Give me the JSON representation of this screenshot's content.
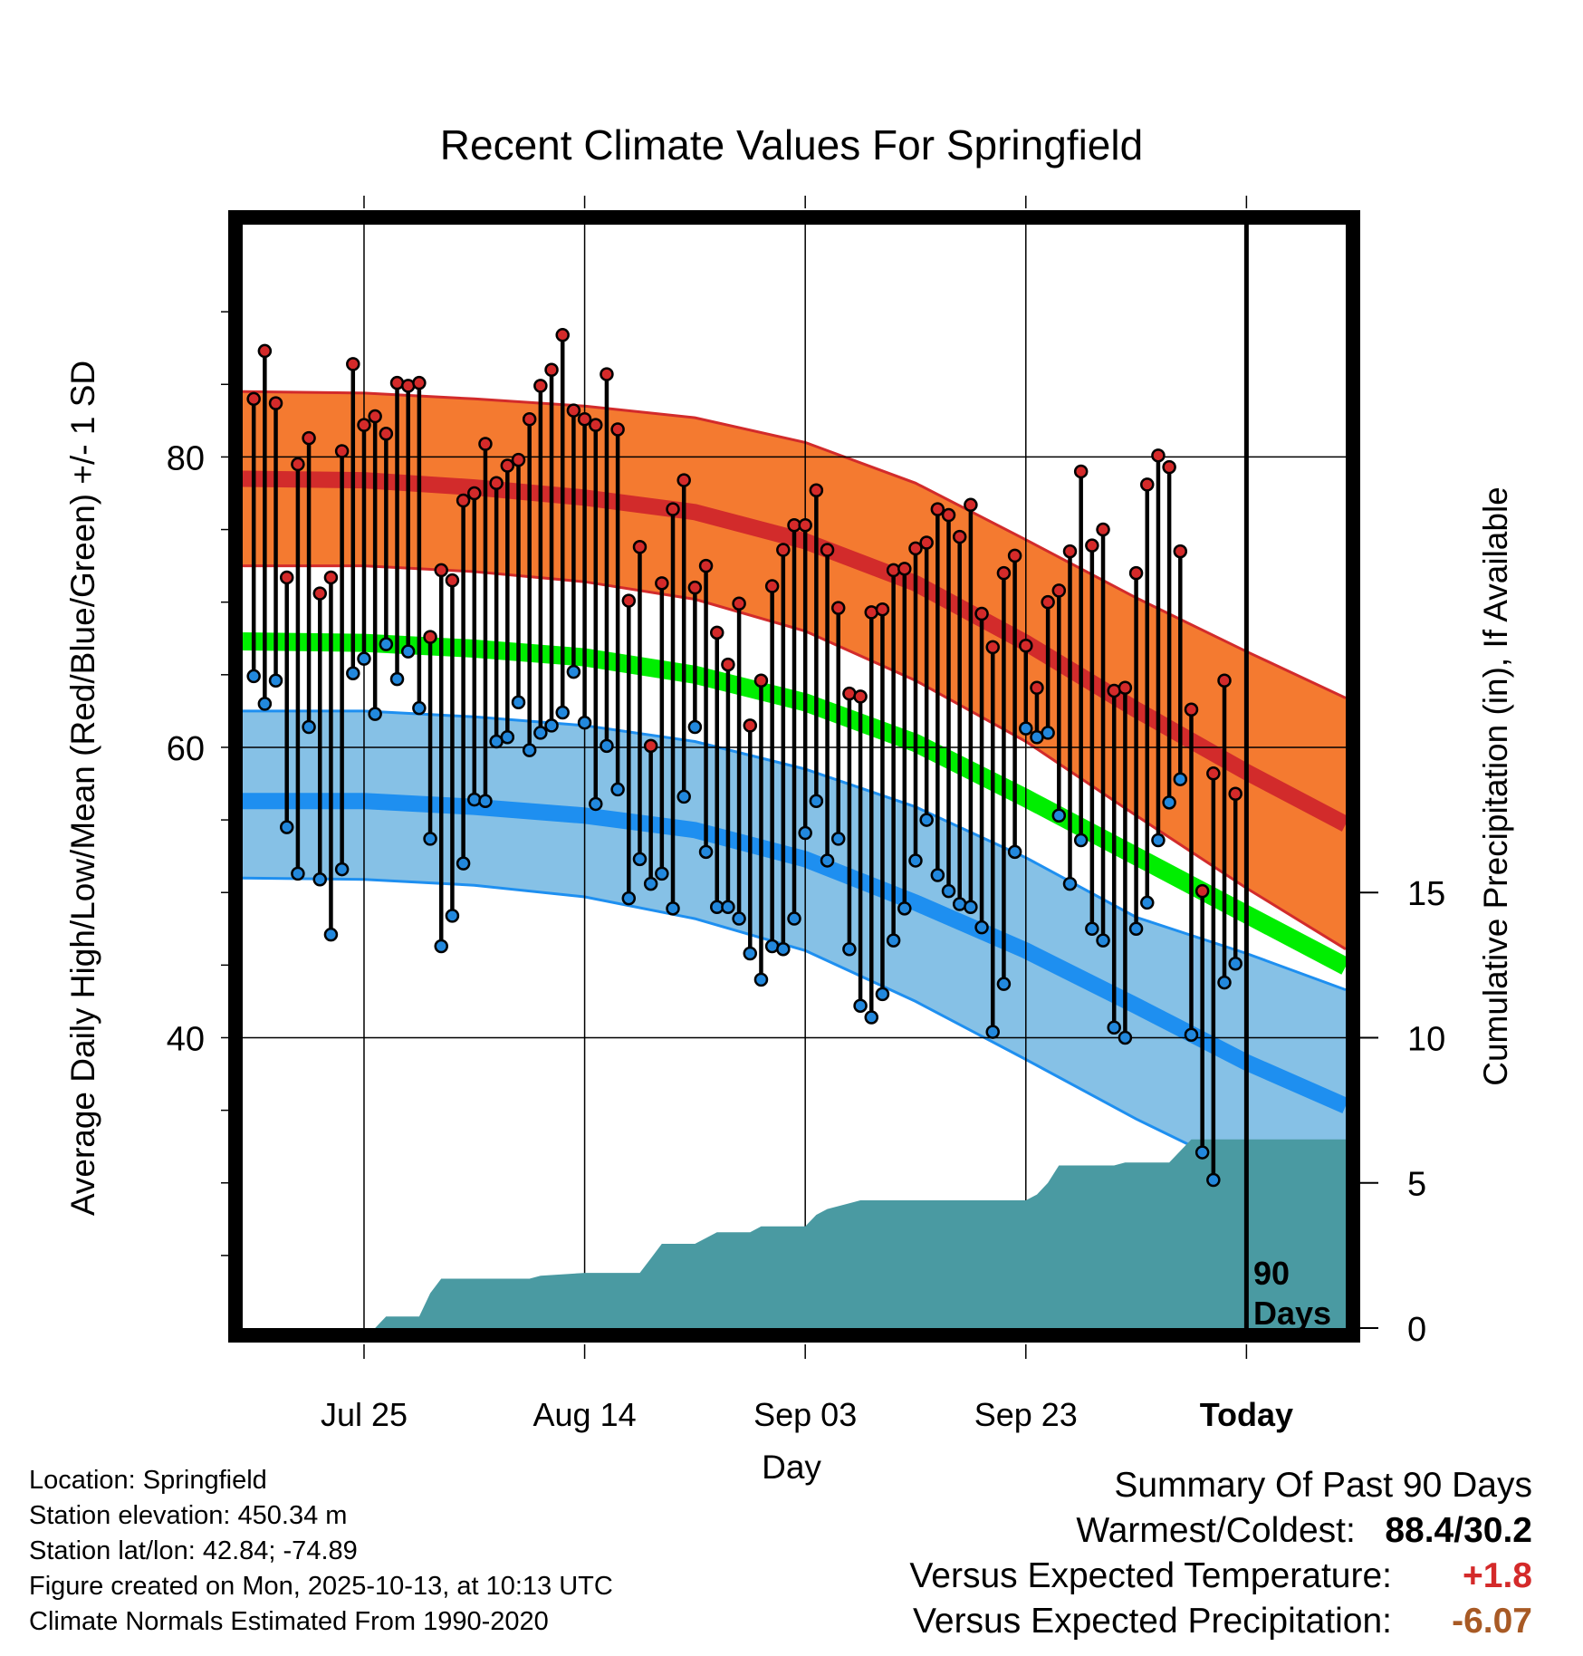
{
  "title": "Recent Climate Values For Springfield",
  "colors": {
    "high_band": "#f47a30",
    "high_mean": "#d22b2b",
    "low_band": "#86c1e6",
    "low_mean": "#1e8ff0",
    "mean": "#00ee00",
    "precip": "#4a9aa2",
    "high_dot": "#d42a2a",
    "low_dot": "#2288dd"
  },
  "info": {
    "location": "Location: Springfield",
    "elevation": "Station elevation: 450.34 m",
    "latlon": "Station lat/lon: 42.84; -74.89",
    "created": "Figure created on Mon, 2025-10-13, at 10:13 UTC",
    "normals": "Climate Normals Estimated From 1990-2020"
  },
  "summary": {
    "heading": "Summary Of Past 90 Days",
    "warm_cold_label": "Warmest/Coldest:",
    "warm_cold_value": "88.4/30.2",
    "temp_label": "Versus Expected Temperature:",
    "temp_value": "+1.8",
    "precip_label": "Versus Expected Precipitation:",
    "precip_value": "-6.07"
  },
  "chart_data": {
    "type": "line",
    "title": "Recent Climate Values For Springfield",
    "xlabel": "Day",
    "ylabel": "Average Daily High/Low/Mean (Red/Blue/Green) +/- 1 SD",
    "y2label": "Cumulative Precipitation (in), If Available",
    "xlim": [
      -91,
      9
    ],
    "ylim": [
      20,
      96
    ],
    "y_ticks": [
      40,
      60,
      80
    ],
    "y2_ticks": [
      0,
      5,
      10,
      15
    ],
    "y2_scale_in_per_degF": 0.5,
    "x_ticks": [
      {
        "day": -80,
        "label": "Jul 25"
      },
      {
        "day": -60,
        "label": "Aug 14"
      },
      {
        "day": -40,
        "label": "Sep 03"
      },
      {
        "day": -20,
        "label": "Sep 23"
      },
      {
        "day": 0,
        "label": "Today"
      }
    ],
    "today_label_1": "90",
    "today_label_2": "Days",
    "normals": {
      "days": [
        -91,
        -80,
        -70,
        -60,
        -50,
        -40,
        -30,
        -20,
        -10,
        0,
        9
      ],
      "high_mean": [
        78.5,
        78.4,
        77.9,
        77.2,
        76.2,
        74.2,
        71.3,
        67.2,
        62.6,
        58.3,
        54.7
      ],
      "high_upper": [
        84.5,
        84.4,
        84.0,
        83.5,
        82.7,
        81.0,
        78.2,
        74.3,
        70.3,
        66.6,
        63.4
      ],
      "high_lower": [
        72.5,
        72.5,
        72.1,
        71.4,
        70.2,
        68.0,
        64.6,
        60.4,
        55.3,
        50.3,
        46.1
      ],
      "mean": [
        67.3,
        67.2,
        66.8,
        66.2,
        65.0,
        63.1,
        60.3,
        56.5,
        52.5,
        48.5,
        44.9
      ],
      "low_mean": [
        56.3,
        56.3,
        55.9,
        55.3,
        54.3,
        52.3,
        49.3,
        46.0,
        42.2,
        38.3,
        35.3
      ],
      "low_upper": [
        62.5,
        62.5,
        62.1,
        61.5,
        60.4,
        58.5,
        55.9,
        52.4,
        48.3,
        45.8,
        43.3
      ],
      "low_lower": [
        51.0,
        50.9,
        50.5,
        49.7,
        48.2,
        46.0,
        42.5,
        38.5,
        34.4,
        30.7,
        28.0
      ]
    },
    "observed": {
      "start_day": -90,
      "highs": [
        84.0,
        87.3,
        83.7,
        71.7,
        79.5,
        81.3,
        70.6,
        71.7,
        80.4,
        86.4,
        82.2,
        82.8,
        81.6,
        85.1,
        84.9,
        85.1,
        67.6,
        72.2,
        71.5,
        77.0,
        77.5,
        80.9,
        78.2,
        79.4,
        79.8,
        82.6,
        84.9,
        86.0,
        88.4,
        83.2,
        82.6,
        82.2,
        85.7,
        81.9,
        70.1,
        73.8,
        60.1,
        71.3,
        76.4,
        78.4,
        71.0,
        72.5,
        67.9,
        65.7,
        69.9,
        61.5,
        64.6,
        71.1,
        73.6,
        75.3,
        75.3,
        77.7,
        73.6,
        69.6,
        63.7,
        63.5,
        69.3,
        69.5,
        72.2,
        72.3,
        73.7,
        74.1,
        76.4,
        76.0,
        74.5,
        76.7,
        69.2,
        66.9,
        72.0,
        73.2,
        67.0,
        64.1,
        70.0,
        70.8,
        73.5,
        79.0,
        73.9,
        75.0,
        63.9,
        64.1,
        72.0,
        78.1,
        80.1,
        79.3,
        73.5,
        62.6,
        50.1,
        58.2,
        64.6,
        56.8
      ],
      "lows": [
        64.9,
        63.0,
        64.6,
        54.5,
        51.3,
        61.4,
        50.9,
        47.1,
        51.6,
        65.1,
        66.1,
        62.3,
        67.1,
        64.7,
        66.6,
        62.7,
        53.7,
        46.3,
        48.4,
        52.0,
        56.4,
        56.3,
        60.4,
        60.7,
        63.1,
        59.8,
        61.0,
        61.5,
        62.4,
        65.2,
        61.7,
        56.1,
        60.1,
        57.1,
        49.6,
        52.3,
        50.6,
        51.3,
        48.9,
        56.6,
        61.4,
        52.8,
        49.0,
        49.0,
        48.2,
        45.8,
        44.0,
        46.3,
        46.1,
        48.2,
        54.1,
        56.3,
        52.2,
        53.7,
        46.1,
        42.2,
        41.4,
        43.0,
        46.7,
        48.9,
        52.2,
        55.0,
        51.2,
        50.1,
        49.2,
        49.0,
        47.6,
        40.4,
        43.7,
        52.8,
        61.3,
        60.7,
        61.0,
        55.3,
        50.6,
        53.6,
        47.5,
        46.7,
        40.7,
        40.0,
        47.5,
        49.3,
        53.6,
        56.2,
        57.8,
        40.2,
        32.1,
        30.2,
        43.8,
        45.1
      ]
    },
    "precip": {
      "days": [
        -91,
        -79,
        -78,
        -75,
        -74,
        -73,
        -72,
        -65,
        -64,
        -60,
        -55,
        -54,
        -53,
        -50,
        -49,
        -48,
        -45,
        -44,
        -40,
        -39,
        -38,
        -36,
        -35,
        -34,
        -20,
        -19,
        -18,
        -17,
        -12,
        -11,
        -7,
        -6,
        -5,
        0,
        9
      ],
      "values": [
        0.0,
        0.0,
        0.4,
        0.4,
        1.2,
        1.7,
        1.7,
        1.7,
        1.8,
        1.9,
        1.9,
        2.4,
        2.9,
        2.9,
        3.1,
        3.3,
        3.3,
        3.5,
        3.5,
        3.9,
        4.1,
        4.3,
        4.4,
        4.4,
        4.4,
        4.6,
        5.0,
        5.6,
        5.6,
        5.7,
        5.7,
        6.1,
        6.5,
        6.5,
        6.5
      ]
    }
  }
}
